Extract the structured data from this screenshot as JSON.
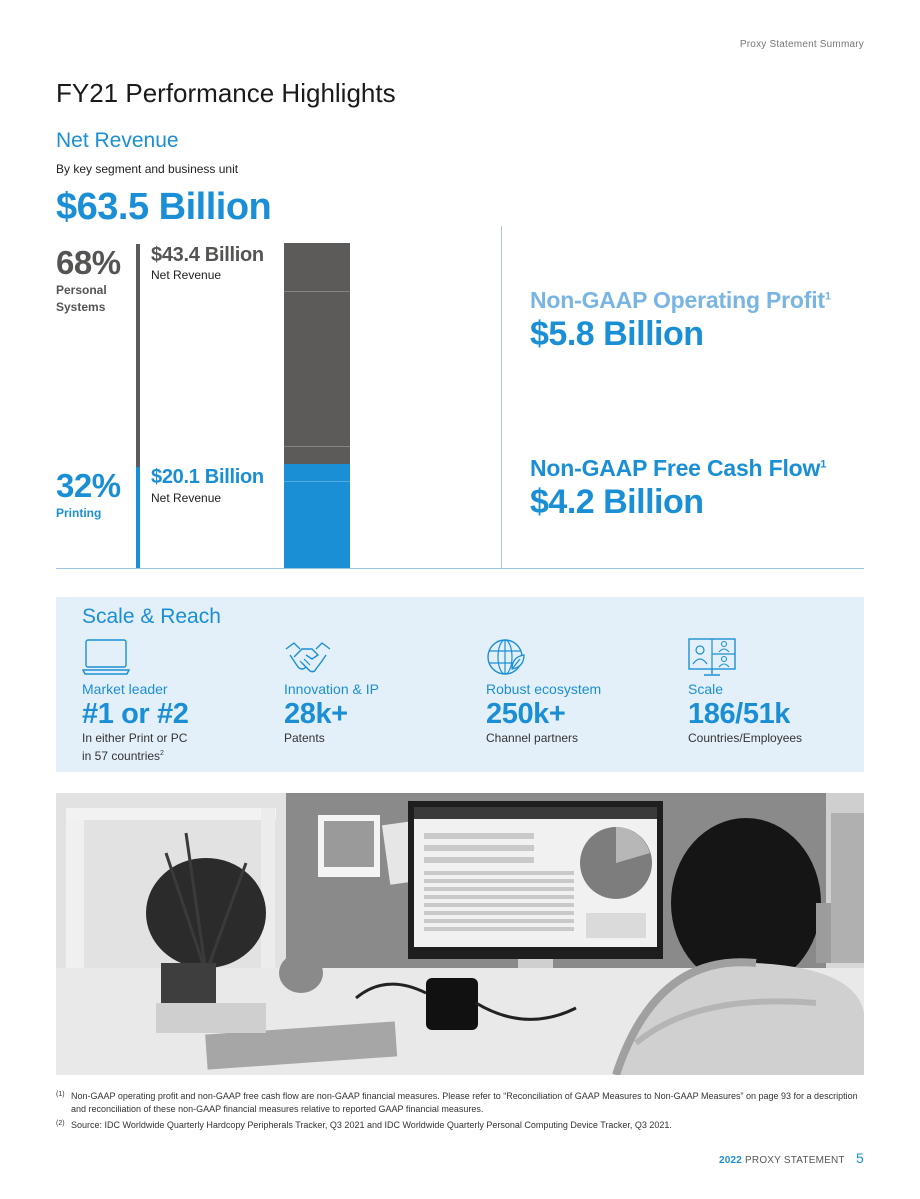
{
  "header": {
    "label": "Proxy Statement Summary"
  },
  "page_title": "FY21 Performance Highlights",
  "net_revenue": {
    "title": "Net Revenue",
    "subtitle": "By key segment and business unit",
    "total": "$63.5 Billion",
    "segments": [
      {
        "pct": "68%",
        "name": "Personal Systems",
        "amount": "$43.4 Billion",
        "amount_label": "Net Revenue",
        "share": 0.68,
        "color": "#5d5b5a"
      },
      {
        "pct": "32%",
        "name": "Printing",
        "amount": "$20.1 Billion",
        "amount_label": "Net Revenue",
        "share": 0.32,
        "color": "#1b8fd6"
      }
    ]
  },
  "operating_profit": {
    "label": "Non-GAAP Operating Profit",
    "footnote_ref": "1",
    "value": "$5.8 Billion"
  },
  "free_cash_flow": {
    "label": "Non-GAAP Free Cash Flow",
    "footnote_ref": "1",
    "value": "$4.2 Billion"
  },
  "scale_reach": {
    "title": "Scale & Reach",
    "items": [
      {
        "icon": "laptop-icon",
        "label": "Market leader",
        "value": "#1 or #2",
        "desc_line1": "In either Print or PC",
        "desc_line2": "in 57 countries",
        "footnote_ref": "2"
      },
      {
        "icon": "handshake-icon",
        "label": "Innovation & IP",
        "value": "28k+",
        "desc_line1": "Patents"
      },
      {
        "icon": "globe-leaf-icon",
        "label": "Robust ecosystem",
        "value": "250k+",
        "desc_line1": "Channel partners"
      },
      {
        "icon": "people-screen-icon",
        "label": "Scale",
        "value": "186/51k",
        "desc_line1": "Countries/Employees"
      }
    ]
  },
  "footnotes": [
    {
      "mark": "(1)",
      "text": "Non-GAAP operating profit and non-GAAP free cash flow are non-GAAP financial measures. Please refer to “Reconciliation of GAAP Measures to Non-GAAP Measures” on page 93 for a description and reconciliation of these non-GAAP financial measures relative to reported GAAP financial measures."
    },
    {
      "mark": "(2)",
      "text": "Source: IDC Worldwide Quarterly Hardcopy Peripherals Tracker, Q3 2021 and IDC Worldwide Quarterly Personal Computing Device Tracker, Q3 2021."
    }
  ],
  "footer": {
    "year": "2022",
    "label": "PROXY STATEMENT",
    "page": "5"
  }
}
